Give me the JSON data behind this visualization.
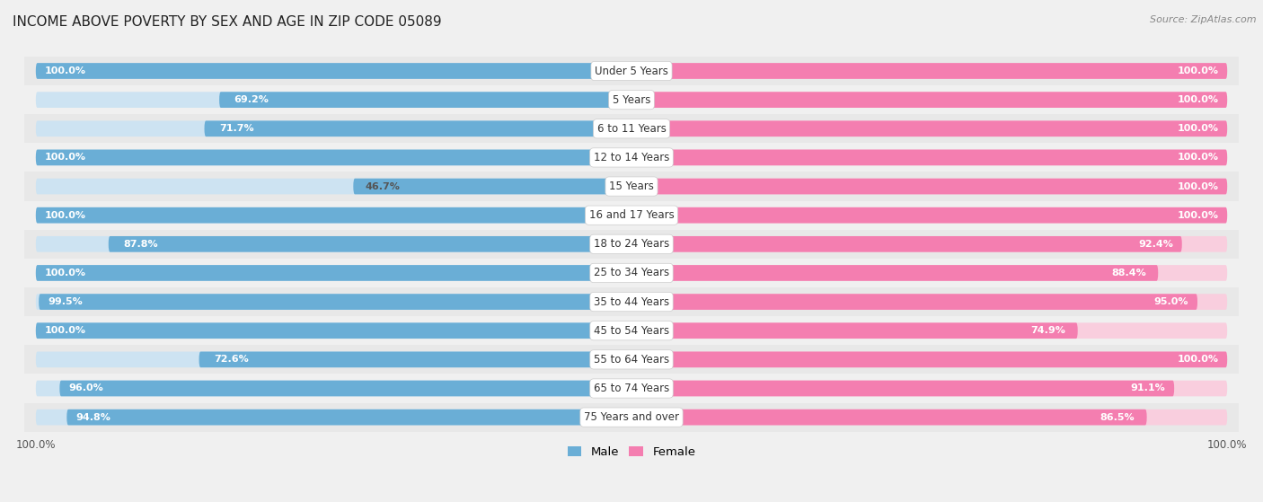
{
  "title": "INCOME ABOVE POVERTY BY SEX AND AGE IN ZIP CODE 05089",
  "source": "Source: ZipAtlas.com",
  "categories": [
    "Under 5 Years",
    "5 Years",
    "6 to 11 Years",
    "12 to 14 Years",
    "15 Years",
    "16 and 17 Years",
    "18 to 24 Years",
    "25 to 34 Years",
    "35 to 44 Years",
    "45 to 54 Years",
    "55 to 64 Years",
    "65 to 74 Years",
    "75 Years and over"
  ],
  "male_values": [
    100.0,
    69.2,
    71.7,
    100.0,
    46.7,
    100.0,
    87.8,
    100.0,
    99.5,
    100.0,
    72.6,
    96.0,
    94.8
  ],
  "female_values": [
    100.0,
    100.0,
    100.0,
    100.0,
    100.0,
    100.0,
    92.4,
    88.4,
    95.0,
    74.9,
    100.0,
    91.1,
    86.5
  ],
  "male_color": "#6aaed6",
  "male_color_light": "#cde3f2",
  "female_color": "#f47eb0",
  "female_color_light": "#f9cede",
  "row_color_even": "#e8e8e8",
  "row_color_odd": "#f5f5f5",
  "background_color": "#f0f0f0",
  "bar_height": 0.55,
  "title_fontsize": 11,
  "source_fontsize": 8,
  "label_fontsize": 8.5,
  "value_fontsize": 8,
  "tick_fontsize": 8.5
}
